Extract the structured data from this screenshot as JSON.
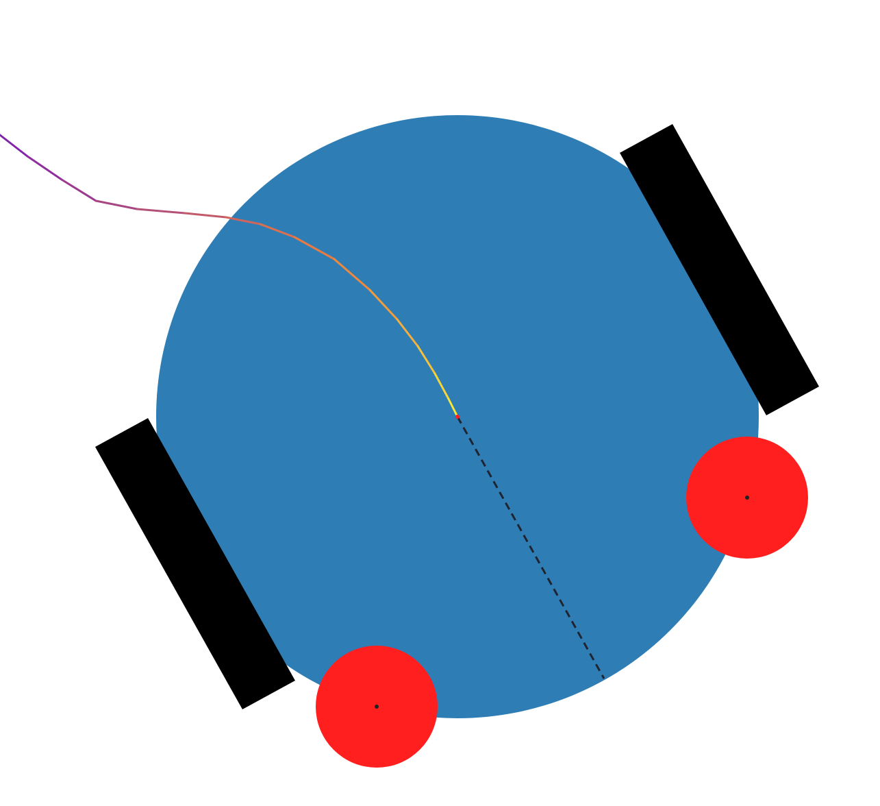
{
  "scene": {
    "kind": "robot-trajectory",
    "colors": {
      "background": "#ffffff",
      "body": "#2e7eb5",
      "wheel": "#000000",
      "sensor": "#ff1f1f",
      "sensor_center": "#222222",
      "heading_line": "#1f2430",
      "trail_start": "#7a1fb0",
      "trail_mid": "#f0803c",
      "trail_end": "#f7ef3a",
      "current_position": "#ff1f1f"
    },
    "body_shape": "circle",
    "wheels": 2,
    "sensors": 2,
    "heading_line_style": "dashed",
    "trail_style": "gradient-colored"
  }
}
